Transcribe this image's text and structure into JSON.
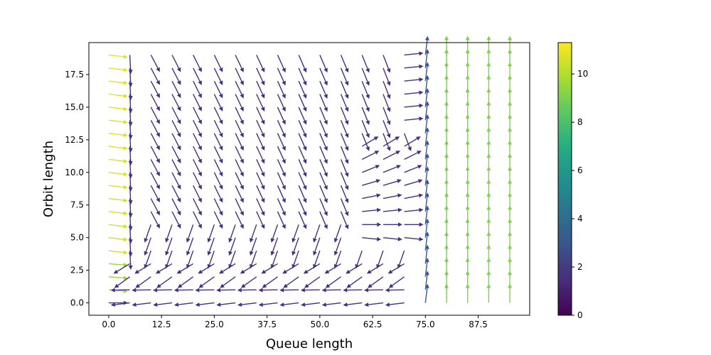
{
  "chart_data": {
    "type": "quiver",
    "title": "",
    "xlabel": "Queue length",
    "ylabel": "Orbit length",
    "xlim": [
      -4.7,
      99.7
    ],
    "ylim": [
      -0.95,
      19.95
    ],
    "xticks": [
      "0.0",
      "12.5",
      "25.0",
      "37.5",
      "50.0",
      "62.5",
      "75.0",
      "87.5"
    ],
    "xtick_values": [
      0,
      12.5,
      25,
      37.5,
      50,
      62.5,
      75,
      87.5
    ],
    "yticks": [
      "0.0",
      "2.5",
      "5.0",
      "7.5",
      "10.0",
      "12.5",
      "15.0",
      "17.5"
    ],
    "ytick_values": [
      0,
      2.5,
      5,
      7.5,
      10,
      12.5,
      15,
      17.5
    ],
    "grid": false,
    "x": [
      0,
      5,
      10,
      15,
      20,
      25,
      30,
      35,
      40,
      45,
      50,
      55,
      60,
      65,
      70,
      75,
      80,
      85,
      90,
      95
    ],
    "y": [
      0,
      1,
      2,
      3,
      4,
      5,
      6,
      7,
      8,
      9,
      10,
      11,
      12,
      13,
      14,
      15,
      16,
      17,
      18,
      19
    ],
    "colormap": "viridis",
    "colorbar": {
      "ticks": [
        "0",
        "2",
        "4",
        "6",
        "8",
        "10"
      ],
      "tick_values": [
        0,
        2,
        4,
        6,
        8,
        10
      ],
      "range": [
        0,
        11.3
      ]
    },
    "description_of_field": "Arrows: magnitude colored by viridis; left column points right (yellow), interior flows toward the x-axis and curls back, right columns (x>=80) point straight up (green)."
  }
}
